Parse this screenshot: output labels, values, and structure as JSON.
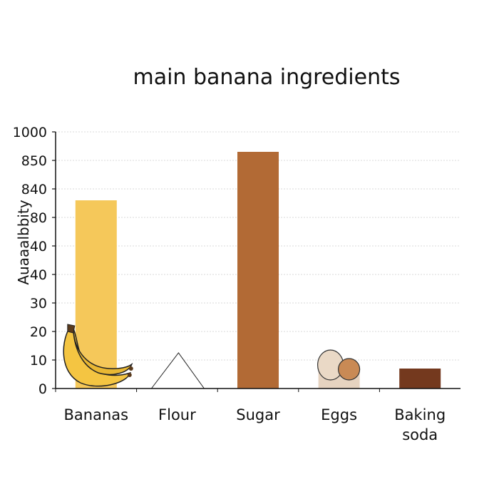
{
  "chart_data": {
    "type": "bar",
    "title": "main banana ingredients",
    "xlabel": "",
    "ylabel": "Auaaalbbity",
    "categories": [
      "Bananas",
      "Flour",
      "Sugar",
      "Eggs",
      "Baking soda"
    ],
    "category_lines": [
      [
        "Bananas"
      ],
      [
        "Flour"
      ],
      [
        "Sugar"
      ],
      [
        "Eggs"
      ],
      [
        "Baking",
        "soda"
      ]
    ],
    "yticks": [
      "0",
      "10",
      "20",
      "30",
      "40",
      "40",
      "80",
      "840",
      "850",
      "1000"
    ],
    "values": [
      6.6,
      1.25,
      8.3,
      0.6,
      0.7
    ],
    "ylim": [
      0,
      9
    ],
    "grid": true,
    "legend": "none",
    "colors": [
      "#F5C85A",
      "#FFFFFF",
      "#B26A35",
      "#E6D3C0",
      "#74391E"
    ],
    "icons": [
      "banana-icon",
      "flour-triangle-icon",
      "",
      "eggs-icon",
      ""
    ]
  }
}
